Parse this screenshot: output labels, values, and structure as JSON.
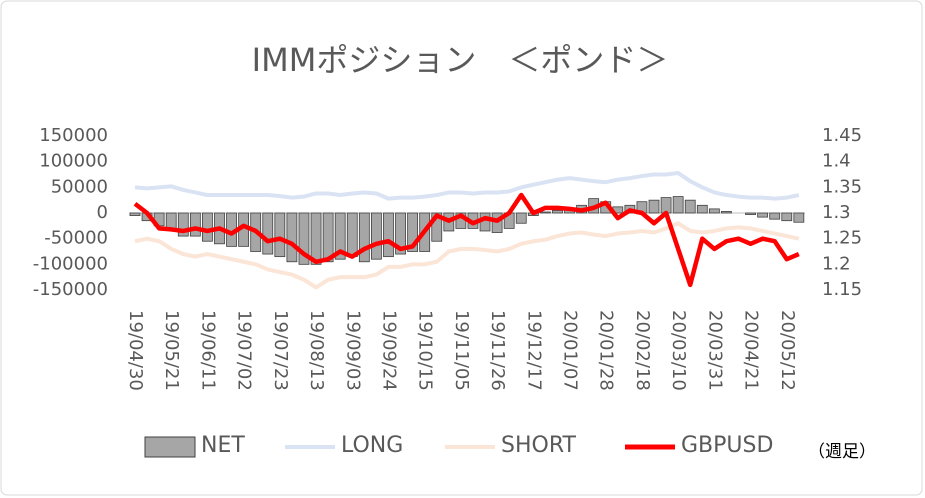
{
  "chart_data": {
    "type": "combo",
    "title": "IMMポジション　＜ポンド＞",
    "note": "（週足）",
    "categories": [
      "19/04/30",
      null,
      null,
      "19/05/21",
      null,
      null,
      "19/06/11",
      null,
      null,
      "19/07/02",
      null,
      null,
      "19/07/23",
      null,
      null,
      "19/08/13",
      null,
      null,
      "19/09/03",
      null,
      null,
      "19/09/24",
      null,
      null,
      "19/10/15",
      null,
      null,
      "19/11/05",
      null,
      null,
      "19/11/26",
      null,
      null,
      "19/12/17",
      null,
      null,
      "20/01/07",
      null,
      null,
      "20/01/28",
      null,
      null,
      "20/02/18",
      null,
      null,
      "20/03/10",
      null,
      null,
      "20/03/31",
      null,
      null,
      "20/04/21",
      null,
      null,
      "20/05/12",
      null
    ],
    "ylim": [
      -150000,
      150000
    ],
    "yticks": [
      -150000,
      -100000,
      -50000,
      0,
      50000,
      100000,
      150000
    ],
    "y2lim": [
      1.15,
      1.45
    ],
    "y2ticks": [
      1.15,
      1.2,
      1.25,
      1.3,
      1.35,
      1.4,
      1.45
    ],
    "series": [
      {
        "name": "NET",
        "type": "bar",
        "color": "#a6a6a6",
        "values": [
          -5000,
          -15000,
          -25000,
          -30000,
          -45000,
          -45000,
          -55000,
          -60000,
          -65000,
          -65000,
          -75000,
          -80000,
          -85000,
          -95000,
          -100000,
          -100000,
          -95000,
          -90000,
          -85000,
          -95000,
          -90000,
          -85000,
          -80000,
          -75000,
          -75000,
          -55000,
          -35000,
          -30000,
          -30000,
          -35000,
          -38000,
          -30000,
          -20000,
          -5000,
          2000,
          5000,
          8000,
          15000,
          28000,
          22000,
          12000,
          15000,
          22000,
          25000,
          30000,
          32000,
          25000,
          15000,
          8000,
          3000,
          0,
          -3000,
          -8000,
          -12000,
          -15000,
          -18000
        ]
      },
      {
        "name": "LONG",
        "type": "line",
        "color": "#dae3f3",
        "values": [
          50000,
          48000,
          50000,
          52000,
          45000,
          40000,
          35000,
          35000,
          35000,
          35000,
          35000,
          35000,
          33000,
          30000,
          32000,
          38000,
          38000,
          35000,
          38000,
          40000,
          38000,
          28000,
          30000,
          30000,
          32000,
          35000,
          40000,
          40000,
          38000,
          40000,
          40000,
          42000,
          50000,
          55000,
          60000,
          65000,
          68000,
          65000,
          62000,
          60000,
          65000,
          68000,
          72000,
          75000,
          75000,
          78000,
          62000,
          50000,
          40000,
          35000,
          32000,
          30000,
          30000,
          28000,
          30000,
          35000
        ]
      },
      {
        "name": "SHORT",
        "type": "line",
        "color": "#fbe5d6",
        "values": [
          -55000,
          -50000,
          -55000,
          -70000,
          -80000,
          -85000,
          -80000,
          -85000,
          -90000,
          -95000,
          -100000,
          -110000,
          -115000,
          -120000,
          -130000,
          -145000,
          -130000,
          -125000,
          -125000,
          -125000,
          -120000,
          -105000,
          -105000,
          -100000,
          -100000,
          -95000,
          -75000,
          -70000,
          -70000,
          -72000,
          -75000,
          -70000,
          -60000,
          -55000,
          -52000,
          -45000,
          -40000,
          -38000,
          -42000,
          -45000,
          -40000,
          -38000,
          -35000,
          -38000,
          -30000,
          -20000,
          -35000,
          -38000,
          -35000,
          -30000,
          -28000,
          -30000,
          -35000,
          -40000,
          -45000,
          -50000
        ]
      },
      {
        "name": "GBPUSD",
        "type": "line",
        "axis": "y2",
        "color": "#ff0000",
        "values": [
          1.318,
          1.3,
          1.27,
          1.268,
          1.265,
          1.27,
          1.265,
          1.27,
          1.26,
          1.275,
          1.265,
          1.245,
          1.25,
          1.24,
          1.22,
          1.205,
          1.21,
          1.225,
          1.215,
          1.23,
          1.24,
          1.245,
          1.23,
          1.235,
          1.265,
          1.295,
          1.285,
          1.295,
          1.28,
          1.29,
          1.285,
          1.3,
          1.335,
          1.3,
          1.31,
          1.31,
          1.308,
          1.305,
          1.31,
          1.32,
          1.29,
          1.305,
          1.3,
          1.28,
          1.3,
          1.23,
          1.16,
          1.25,
          1.23,
          1.245,
          1.25,
          1.24,
          1.25,
          1.245,
          1.21,
          1.22
        ]
      }
    ]
  }
}
